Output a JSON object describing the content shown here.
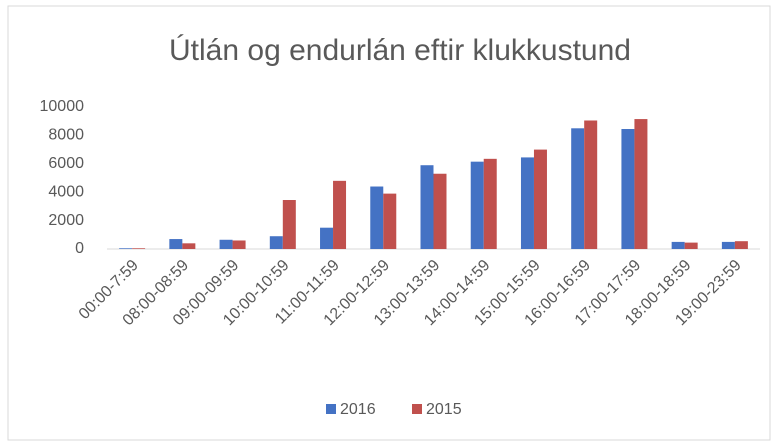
{
  "chart_data": {
    "type": "bar",
    "title": "Útlán og endurlán eftir klukkustund",
    "categories": [
      "00:00-7:59",
      "08:00-08:59",
      "09:00-09:59",
      "10:00-10:59",
      "11:00-11:59",
      "12:00-12:59",
      "13:00-13:59",
      "14:00-14:59",
      "15:00-15:59",
      "16:00-16:59",
      "17:00-17:59",
      "18:00-18:59",
      "19:00-23:59"
    ],
    "series": [
      {
        "name": "2016",
        "color": "#4472c4",
        "values": [
          50,
          700,
          650,
          900,
          1500,
          4400,
          5900,
          6150,
          6450,
          8500,
          8450,
          500,
          500
        ]
      },
      {
        "name": "2015",
        "color": "#c0504d",
        "values": [
          50,
          400,
          600,
          3450,
          4800,
          3900,
          5300,
          6350,
          7000,
          9050,
          9150,
          450,
          550
        ]
      }
    ],
    "ylim": [
      0,
      10000
    ],
    "yticks": [
      0,
      2000,
      4000,
      6000,
      8000,
      10000
    ],
    "grid": false,
    "legend": "bottom"
  }
}
